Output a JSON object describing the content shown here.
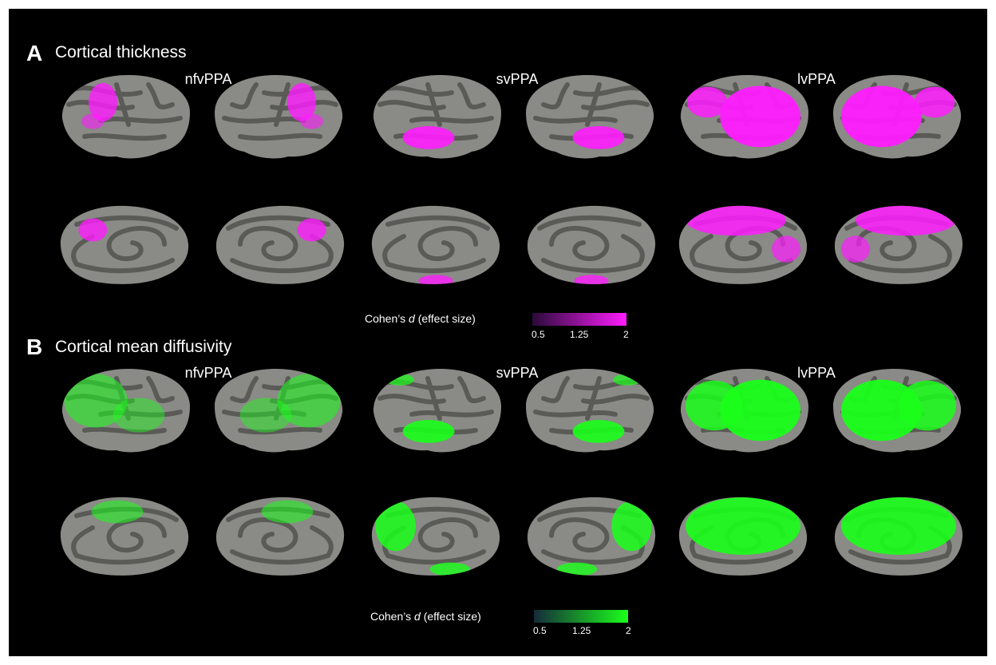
{
  "panels": [
    {
      "letter": "A",
      "title": "Cortical thickness",
      "groups": [
        "nfvPPA",
        "svPPA",
        "lvPPA"
      ],
      "overlay_color": "#ff1cff",
      "colorbar": {
        "label_prefix": "Cohen’s ",
        "label_var": "d",
        "label_suffix": " (effect size)",
        "ticks": [
          "0.5",
          "1.25",
          "2"
        ],
        "color_low": "#2a0a3a",
        "color_high": "#ff1cff"
      }
    },
    {
      "letter": "B",
      "title": "Cortical mean diffusivity",
      "groups": [
        "nfvPPA",
        "svPPA",
        "lvPPA"
      ],
      "overlay_color": "#1aff1a",
      "colorbar": {
        "label_prefix": "Cohen’s ",
        "label_var": "d",
        "label_suffix": " (effect size)",
        "ticks": [
          "0.5",
          "1.25",
          "2"
        ],
        "color_low": "#152a3a",
        "color_high": "#1aff1a"
      }
    }
  ]
}
